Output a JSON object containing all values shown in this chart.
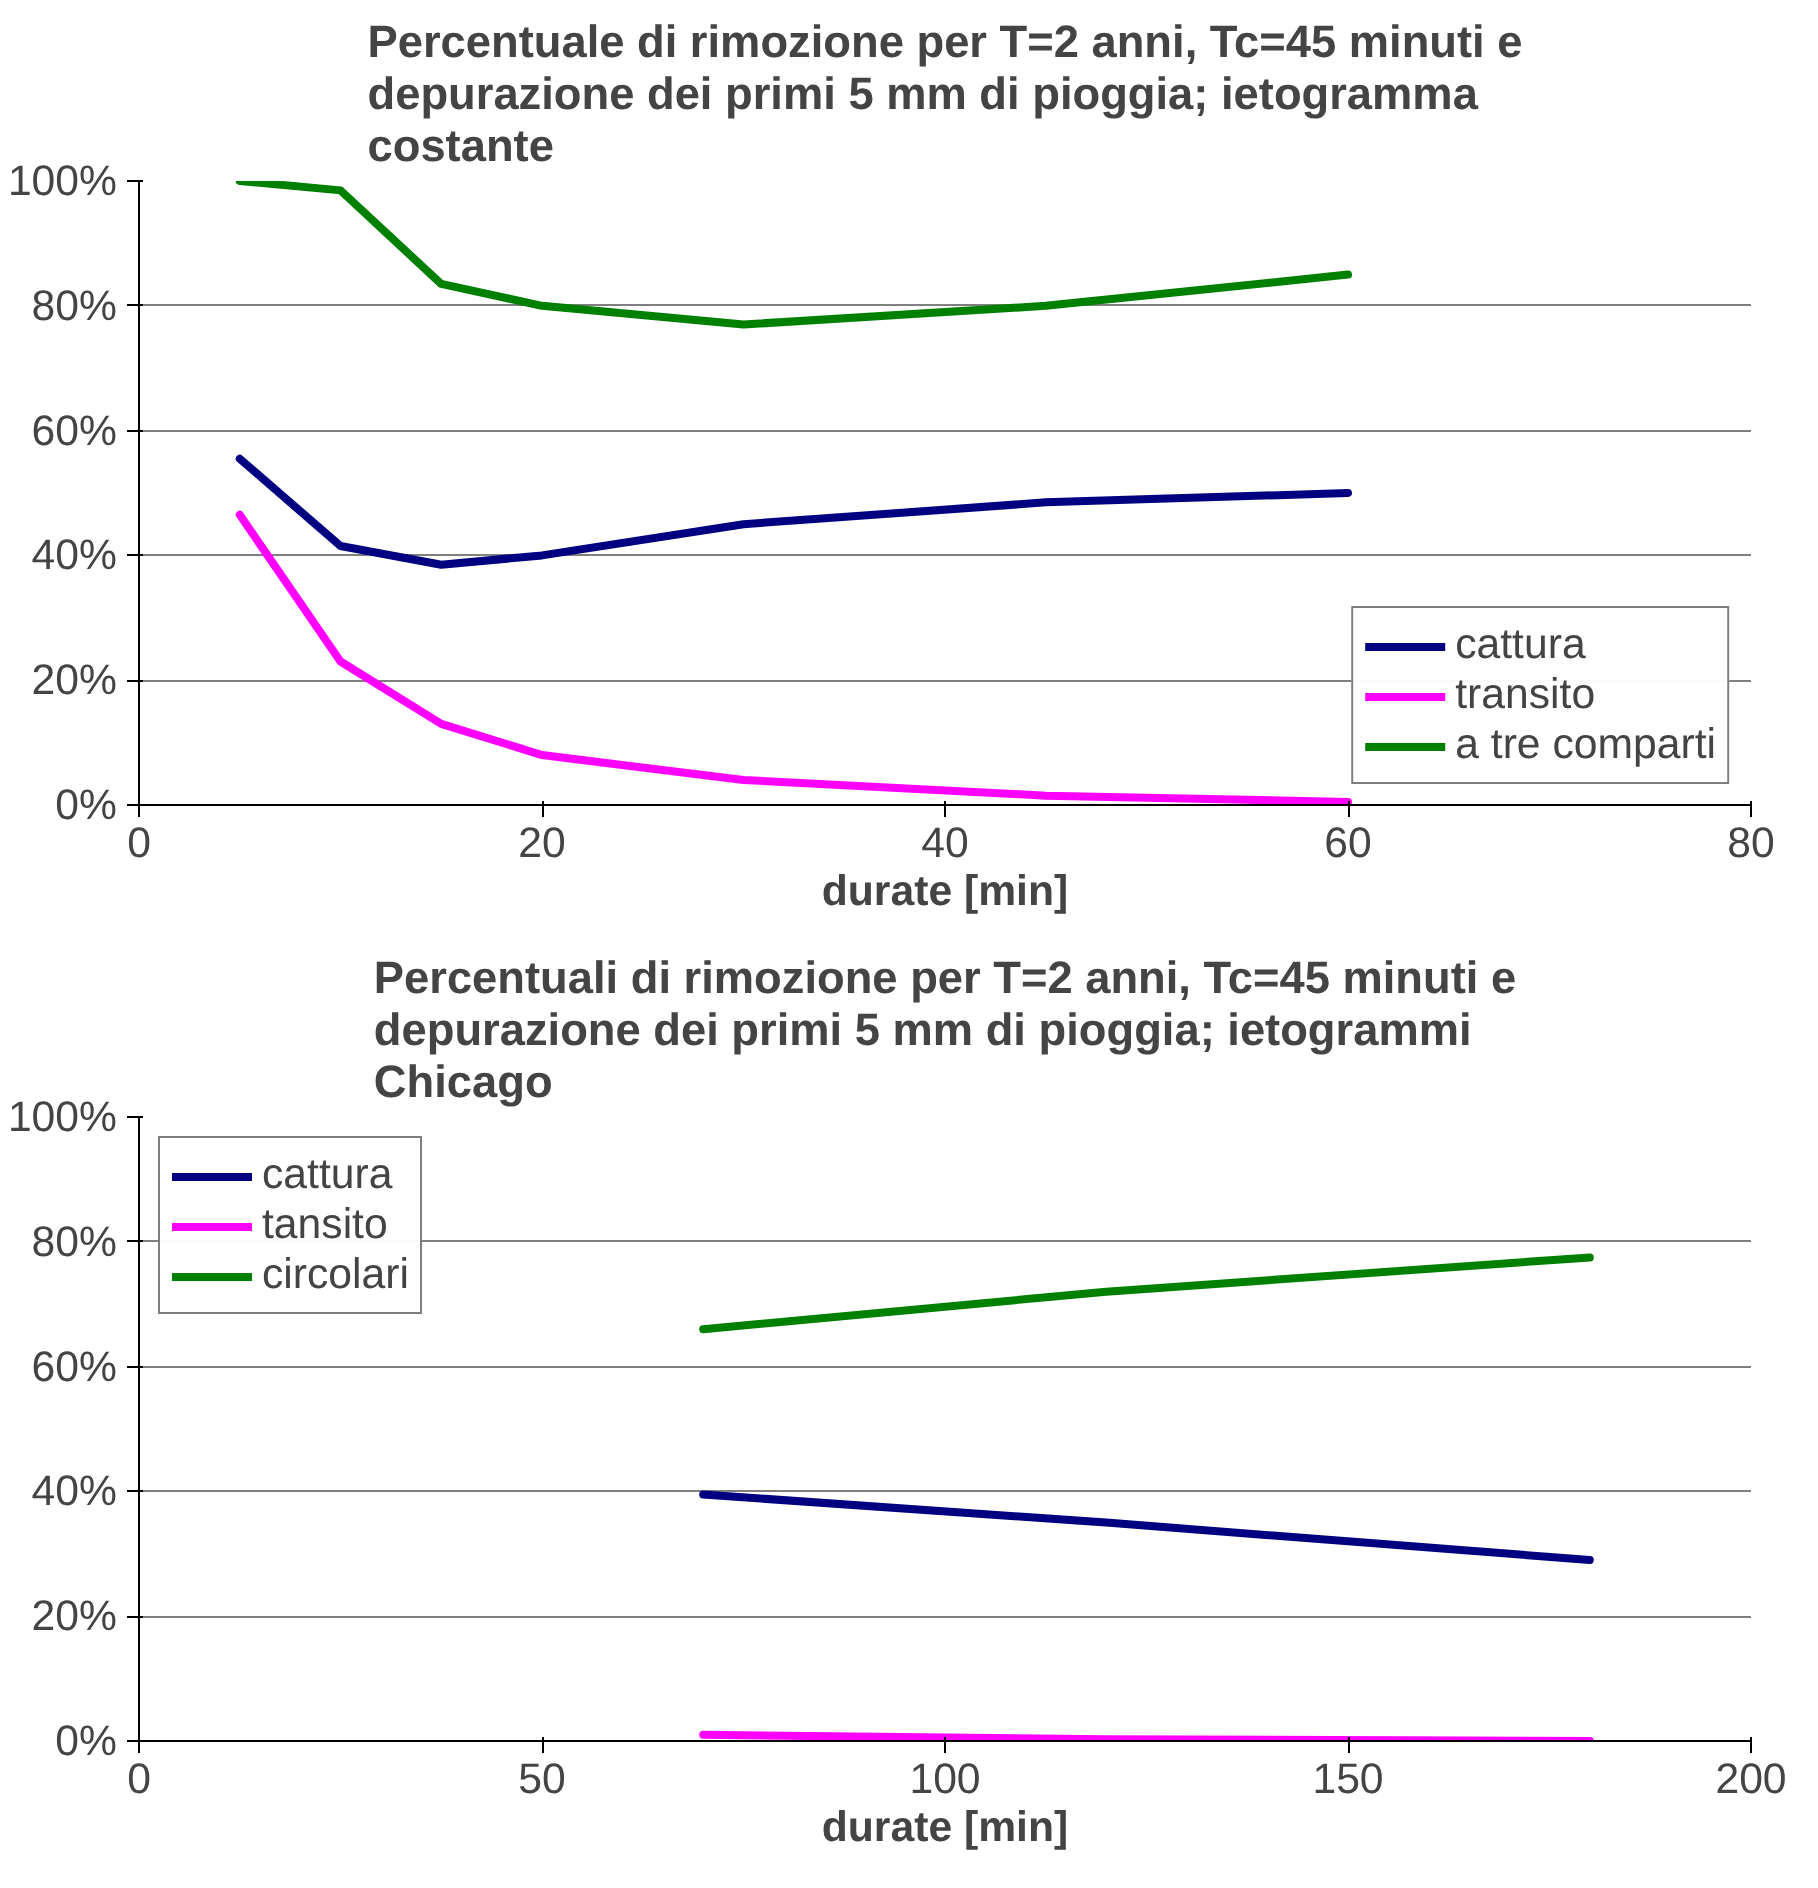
{
  "chart_data": [
    {
      "type": "line",
      "title": "Percentuale di rimozione per T=2 anni, Tc=45 minuti e depurazione dei primi 5 mm di pioggia; ietogramma costante",
      "xlabel": "durate [min]",
      "x": [
        5,
        10,
        15,
        20,
        30,
        45,
        60
      ],
      "series": [
        {
          "name": "cattura",
          "color": "#000080",
          "values": [
            0.555,
            0.415,
            0.385,
            0.4,
            0.45,
            0.485,
            0.5
          ]
        },
        {
          "name": "transito",
          "color": "#ff00ff",
          "values": [
            0.465,
            0.23,
            0.13,
            0.08,
            0.04,
            0.015,
            0.005
          ]
        },
        {
          "name": "a tre comparti",
          "color": "#008000",
          "values": [
            1.0,
            0.985,
            0.835,
            0.8,
            0.77,
            0.8,
            0.85
          ]
        }
      ],
      "xlim": [
        0,
        80
      ],
      "xticks": [
        0,
        20,
        40,
        60,
        80
      ],
      "ylim": [
        0,
        1
      ],
      "yticks": [
        {
          "value": 0,
          "label": "0%"
        },
        {
          "value": 0.2,
          "label": "20%"
        },
        {
          "value": 0.4,
          "label": "40%"
        },
        {
          "value": 0.6,
          "label": "60%"
        },
        {
          "value": 0.8,
          "label": "80%"
        },
        {
          "value": 1,
          "label": "100%"
        }
      ],
      "grid": "y",
      "legend": "bottom right",
      "marker": "none",
      "line_style": "solid"
    },
    {
      "type": "line",
      "title": "Percentuali di rimozione per T=2 anni, Tc=45 minuti e depurazione dei primi 5 mm di pioggia; ietogrammi Chicago",
      "xlabel": "durate [min]",
      "x": [
        70,
        120,
        180
      ],
      "series": [
        {
          "name": "cattura",
          "color": "#000080",
          "values": [
            0.395,
            0.35,
            0.29
          ]
        },
        {
          "name": "tansito",
          "color": "#ff00ff",
          "values": [
            0.01,
            0.003,
            0.0
          ]
        },
        {
          "name": "circolari",
          "color": "#008000",
          "values": [
            0.66,
            0.72,
            0.775
          ]
        }
      ],
      "xlim": [
        0,
        200
      ],
      "xticks": [
        0,
        50,
        100,
        150,
        200
      ],
      "ylim": [
        0,
        1
      ],
      "yticks": [
        {
          "value": 0,
          "label": "0%"
        },
        {
          "value": 0.2,
          "label": "20%"
        },
        {
          "value": 0.4,
          "label": "40%"
        },
        {
          "value": 0.6,
          "label": "60%"
        },
        {
          "value": 0.8,
          "label": "80%"
        },
        {
          "value": 1,
          "label": "100%"
        }
      ],
      "grid": "y",
      "legend": "top left",
      "marker": "none",
      "line_style": "solid"
    }
  ]
}
